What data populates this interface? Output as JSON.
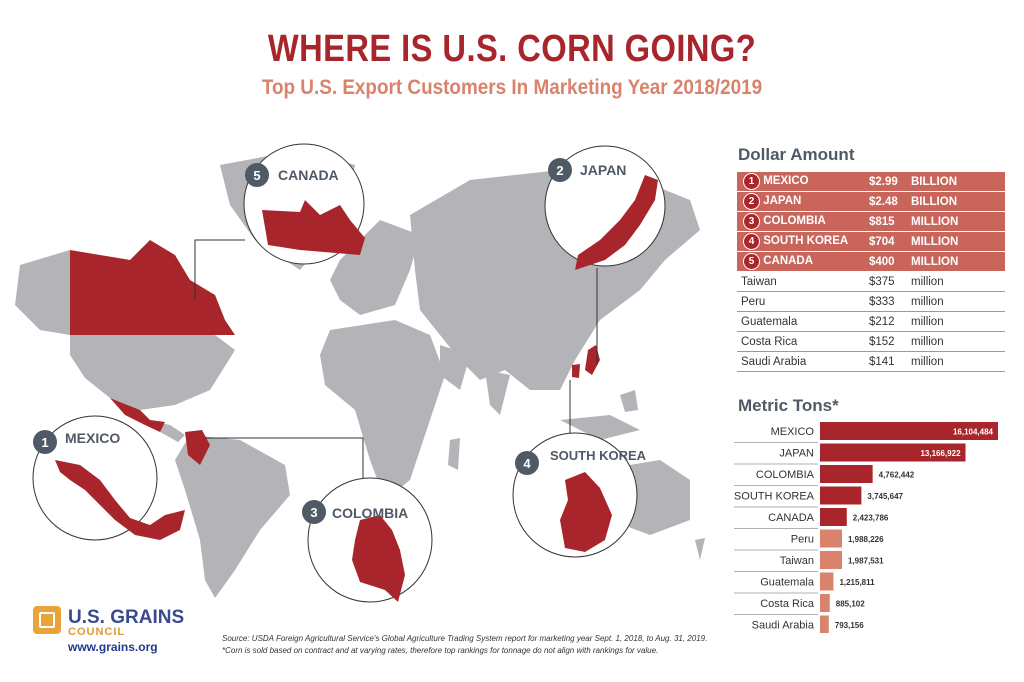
{
  "title": "WHERE IS U.S. CORN GOING?",
  "subtitle": "Top U.S. Export Customers In Marketing Year 2018/2019",
  "callouts": [
    {
      "rank": "5",
      "label": "CANADA"
    },
    {
      "rank": "2",
      "label": "JAPAN"
    },
    {
      "rank": "1",
      "label": "MEXICO"
    },
    {
      "rank": "3",
      "label": "COLOMBIA"
    },
    {
      "rank": "4",
      "label": "SOUTH KOREA"
    }
  ],
  "dollar_title": "Dollar Amount",
  "tons_title": "Metric Tons*",
  "colors": {
    "accent": "#a8262b",
    "highlight": "#c9655b",
    "light_bar": "#d9826c",
    "land": "#b3b3b8"
  },
  "footer": {
    "logo_name": "U.S. GRAINS",
    "logo_council": "COUNCIL",
    "website": "www.grains.org",
    "source": "Source: USDA Foreign Agricultural Service's Global Agriculture Trading System report for marketing year Sept. 1, 2018, to Aug. 31, 2019.",
    "footnote": "*Corn is sold based on contract and at varying rates, therefore top rankings for tonnage do not align with rankings for value."
  },
  "chart_data": [
    {
      "type": "table",
      "title": "Dollar Amount",
      "rows": [
        {
          "rank": "1",
          "country": "MEXICO",
          "amount": "$2.99",
          "unit": "BILLION",
          "value_usd": 2990000000
        },
        {
          "rank": "2",
          "country": "JAPAN",
          "amount": "$2.48",
          "unit": "BILLION",
          "value_usd": 2480000000
        },
        {
          "rank": "3",
          "country": "COLOMBIA",
          "amount": "$815",
          "unit": "MILLION",
          "value_usd": 815000000
        },
        {
          "rank": "4",
          "country": "SOUTH KOREA",
          "amount": "$704",
          "unit": "MILLION",
          "value_usd": 704000000
        },
        {
          "rank": "5",
          "country": "CANADA",
          "amount": "$400",
          "unit": "MILLION",
          "value_usd": 400000000
        },
        {
          "rank": "",
          "country": "Taiwan",
          "amount": "$375",
          "unit": "million",
          "value_usd": 375000000
        },
        {
          "rank": "",
          "country": "Peru",
          "amount": "$333",
          "unit": "million",
          "value_usd": 333000000
        },
        {
          "rank": "",
          "country": "Guatemala",
          "amount": "$212",
          "unit": "million",
          "value_usd": 212000000
        },
        {
          "rank": "",
          "country": "Costa Rica",
          "amount": "$152",
          "unit": "million",
          "value_usd": 152000000
        },
        {
          "rank": "",
          "country": "Saudi Arabia",
          "amount": "$141",
          "unit": "million",
          "value_usd": 141000000
        }
      ]
    },
    {
      "type": "bar",
      "orientation": "horizontal",
      "title": "Metric Tons*",
      "categories": [
        "MEXICO",
        "JAPAN",
        "COLOMBIA",
        "SOUTH KOREA",
        "CANADA",
        "Peru",
        "Taiwan",
        "Guatemala",
        "Costa Rica",
        "Saudi Arabia"
      ],
      "values": [
        16104484,
        13166922,
        4762442,
        3745647,
        2423786,
        1988226,
        1987531,
        1215811,
        885102,
        793156
      ],
      "labels": [
        "16,104,484",
        "13,166,922",
        "4,762,442",
        "3,745,647",
        "2,423,786",
        "1,988,226",
        "1,987,531",
        "1,215,811",
        "885,102",
        "793,156"
      ],
      "highlighted_top": 5,
      "xlim": [
        0,
        16104484
      ]
    }
  ]
}
